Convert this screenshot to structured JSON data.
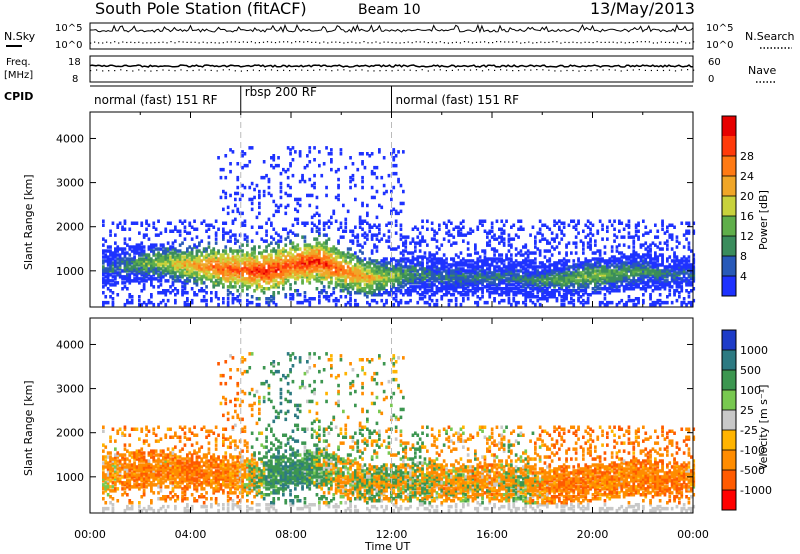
{
  "header": {
    "station": "South Pole Station (fitACF)",
    "beam": "Beam 10",
    "date": "13/May/2013"
  },
  "aux_panels": {
    "nsky_label": "N.Sky",
    "nsearch_label": "N.Search",
    "freq_label_1": "Freq.",
    "freq_label_2": "[MHz]",
    "nave_label": "Nave",
    "cpid_label": "CPID",
    "left_top_ticks": [
      "10^5",
      "10^0"
    ],
    "right_top_ticks": [
      "10^5",
      "10^0"
    ],
    "freq_ticks": [
      "18",
      "8"
    ],
    "nave_ticks": [
      "60",
      "0"
    ]
  },
  "cpid_segments": [
    {
      "label": "normal (fast) 151 RF",
      "start": 0,
      "end": 6
    },
    {
      "label": "rbsp 200 RF",
      "start": 6,
      "end": 12
    },
    {
      "label": "normal (fast) 151 RF",
      "start": 12,
      "end": 24
    }
  ],
  "colors": {
    "power": [
      "#1e32ff",
      "#2859b8",
      "#3a8c5c",
      "#5fae4a",
      "#c8d23c",
      "#f0a628",
      "#ff7a14",
      "#ff3a0a",
      "#e60000"
    ],
    "velocity": [
      "#ff0000",
      "#ff5a00",
      "#ff8c00",
      "#ffb400",
      "#c8c8c8",
      "#78c850",
      "#3c9650",
      "#2d7a82",
      "#1e3cc8"
    ]
  },
  "chart_data": [
    {
      "type": "heatmap",
      "title": "",
      "xlabel": "Time UT",
      "ylabel": "Slant Range [km]",
      "xlim": [
        0,
        24
      ],
      "ylim": [
        180,
        4600
      ],
      "x_ticks": [
        "00:00",
        "04:00",
        "08:00",
        "12:00",
        "16:00",
        "20:00",
        "00:00"
      ],
      "y_ticks": [
        1000,
        2000,
        3000,
        4000
      ],
      "colorbar_label": "Power [dB]",
      "colorbar_ticks": [
        4,
        8,
        12,
        16,
        20,
        24,
        28
      ],
      "profile": {
        "hours": [
          0,
          1,
          2,
          3,
          4,
          5,
          6,
          7,
          8,
          9,
          10,
          11,
          12,
          13,
          14,
          15,
          16,
          17,
          18,
          19,
          20,
          21,
          22,
          23,
          24
        ],
        "main_echo_center_km": [
          1000,
          1050,
          1150,
          1150,
          1100,
          1050,
          1000,
          950,
          1100,
          1200,
          1000,
          800,
          850,
          900,
          850,
          800,
          850,
          800,
          750,
          800,
          850,
          900,
          950,
          900,
          900
        ],
        "peak_power_db": [
          8,
          10,
          14,
          18,
          22,
          26,
          28,
          30,
          28,
          30,
          26,
          22,
          16,
          12,
          10,
          10,
          10,
          10,
          12,
          14,
          16,
          14,
          12,
          10,
          8
        ]
      }
    },
    {
      "type": "heatmap",
      "title": "",
      "xlabel": "Time UT",
      "ylabel": "Slant Range [km]",
      "xlim": [
        0,
        24
      ],
      "ylim": [
        180,
        4600
      ],
      "x_ticks": [
        "00:00",
        "04:00",
        "08:00",
        "12:00",
        "16:00",
        "20:00",
        "00:00"
      ],
      "y_ticks": [
        1000,
        2000,
        3000,
        4000
      ],
      "colorbar_label": "Velocity [m s⁻¹]",
      "colorbar_ticks": [
        1000,
        500,
        100,
        25,
        -25,
        -100,
        -500,
        -1000
      ],
      "profile": {
        "hours": [
          0,
          1,
          2,
          3,
          4,
          5,
          6,
          7,
          8,
          9,
          10,
          11,
          12,
          13,
          14,
          15,
          16,
          17,
          18,
          19,
          20,
          21,
          22,
          23,
          24
        ],
        "dominant_velocity_ms": [
          -150,
          -300,
          -400,
          -300,
          -500,
          -400,
          -300,
          300,
          500,
          200,
          -100,
          100,
          -100,
          100,
          -200,
          -150,
          -250,
          0,
          -300,
          -500,
          -400,
          -350,
          -400,
          -500,
          -300
        ]
      }
    }
  ]
}
